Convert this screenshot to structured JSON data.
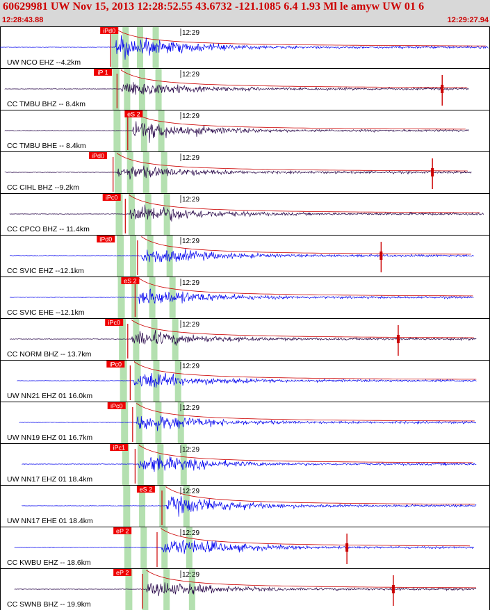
{
  "header": {
    "title": "60629981 UW Nov 15, 2013 12:28:52.55    43.6732 -121.1085  6.4 1.93 Ml le amyw UW 01    6",
    "start_time": "12:28:43.88",
    "end_time": "12:29:27.94"
  },
  "colors": {
    "header_text": "#cc0000",
    "header_bg": "#d8d8d8",
    "pick_box": "#ee0000",
    "trace_blue": "#0000ee",
    "trace_dark": "#220044",
    "model_curve": "#cc0000",
    "window_band": "#b4e0b0"
  },
  "chart_data": {
    "type": "seismogram",
    "time_range": [
      "12:28:43.88",
      "12:29:27.94"
    ],
    "minute_label": "12:29",
    "window_bands": [
      {
        "top": 0.0,
        "bottom": 1.0,
        "p_start": 0.225,
        "p_end": 0.245,
        "s_start": 0.255,
        "s_end": 0.27
      },
      {
        "top": 0.0,
        "bottom": 1.0,
        "p_start": 0.245,
        "p_end": 0.263,
        "s_start": 0.285,
        "s_end": 0.3
      }
    ],
    "traces": [
      {
        "label": "UW NCO EHZ --4.2km",
        "pick": "iPd0",
        "pick_t": 0.225,
        "onset_t": 0.235,
        "color": "blue",
        "amp": 1.0,
        "trace_start": 0.0,
        "trace_end": 1.0,
        "spike_t": null
      },
      {
        "label": "CC TMBU BHZ -- 8.4km",
        "pick": "iP 1",
        "pick_t": 0.212,
        "onset_t": 0.248,
        "color": "dark",
        "amp": 0.75,
        "trace_start": 0.01,
        "trace_end": 0.96,
        "spike_t": 0.905
      },
      {
        "label": "CC TMBU BHE -- 8.4km",
        "pick": "eS 2",
        "pick_t": 0.275,
        "onset_t": 0.27,
        "color": "dark",
        "amp": 0.85,
        "trace_start": 0.01,
        "trace_end": 0.96,
        "spike_t": null
      },
      {
        "label": "CC CIHL BHZ --9.2km",
        "pick": "iPd0",
        "pick_t": 0.202,
        "onset_t": 0.24,
        "color": "dark",
        "amp": 0.65,
        "trace_start": 0.01,
        "trace_end": 0.965,
        "spike_t": 0.885
      },
      {
        "label": "CC CPCO BHZ -- 11.4km",
        "pick": "iPc0",
        "pick_t": 0.23,
        "onset_t": 0.265,
        "color": "dark",
        "amp": 0.9,
        "trace_start": 0.02,
        "trace_end": 0.99,
        "spike_t": null
      },
      {
        "label": "CC SVIC EHZ --12.1km",
        "pick": "iPd0",
        "pick_t": 0.218,
        "onset_t": 0.29,
        "color": "blue",
        "amp": 0.75,
        "trace_start": 0.02,
        "trace_end": 0.97,
        "spike_t": 0.78
      },
      {
        "label": "CC SVIC EHE --12.1km",
        "pick": "eS 2",
        "pick_t": 0.268,
        "onset_t": 0.285,
        "color": "blue",
        "amp": 0.8,
        "trace_start": 0.02,
        "trace_end": 0.97,
        "spike_t": null
      },
      {
        "label": "CC NORM BHZ -- 13.7km",
        "pick": "iPc0",
        "pick_t": 0.235,
        "onset_t": 0.27,
        "color": "dark",
        "amp": 0.75,
        "trace_start": 0.02,
        "trace_end": 0.975,
        "spike_t": 0.815
      },
      {
        "label": "UW NN21 EHZ 01 16.0km",
        "pick": "iPc0",
        "pick_t": 0.238,
        "onset_t": 0.275,
        "color": "blue",
        "amp": 0.75,
        "trace_start": 0.035,
        "trace_end": 0.975,
        "spike_t": null
      },
      {
        "label": "UW NN19 EHZ 01 16.7km",
        "pick": "iPc0",
        "pick_t": 0.24,
        "onset_t": 0.28,
        "color": "blue",
        "amp": 0.8,
        "trace_start": 0.04,
        "trace_end": 0.975,
        "spike_t": null
      },
      {
        "label": "UW NN17 EHZ 01 18.4km",
        "pick": "iPc1",
        "pick_t": 0.245,
        "onset_t": 0.285,
        "color": "blue",
        "amp": 0.8,
        "trace_start": 0.045,
        "trace_end": 0.975,
        "spike_t": null
      },
      {
        "label": "UW NN17 EHE 01 18.4km",
        "pick": "eS 2",
        "pick_t": 0.3,
        "onset_t": 0.34,
        "color": "blue",
        "amp": 0.85,
        "trace_start": 0.045,
        "trace_end": 0.975,
        "spike_t": null
      },
      {
        "label": "CC KWBU EHZ -- 18.6km",
        "pick": "eP 2",
        "pick_t": 0.252,
        "onset_t": 0.33,
        "color": "blue",
        "amp": 0.85,
        "trace_start": 0.03,
        "trace_end": 0.97,
        "spike_t": 0.71
      },
      {
        "label": "CC SWNB BHZ -- 19.9km",
        "pick": "eP 2",
        "pick_t": 0.252,
        "onset_t": 0.3,
        "color": "dark",
        "amp": 0.7,
        "trace_start": 0.03,
        "trace_end": 0.975,
        "spike_t": 0.805
      }
    ]
  }
}
